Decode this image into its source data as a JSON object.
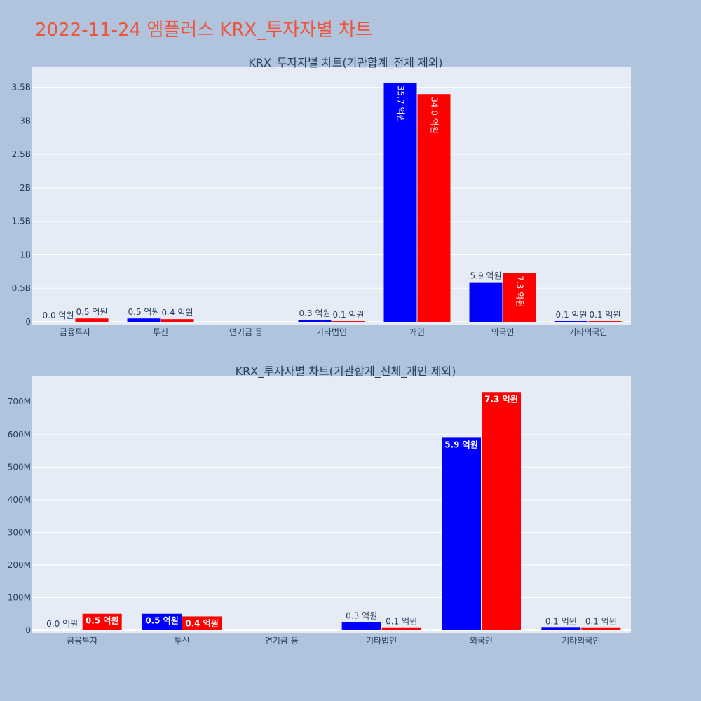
{
  "page": {
    "title": "2022-11-24 엠플러스 KRX_투자자별 차트"
  },
  "chart_data": [
    {
      "type": "bar",
      "title": "KRX_투자자별 차트(기관합계_전체 제외)",
      "categories": [
        "금융투자",
        "투신",
        "연기금 등",
        "기타법인",
        "개인",
        "외국인",
        "기타외국인"
      ],
      "series": [
        {
          "color": "#0000ff",
          "values": [
            0,
            50000000,
            0,
            30000000,
            3570000000,
            590000000,
            10000000
          ],
          "labels": [
            "0.0 억원",
            "0.5 억원",
            "",
            "0.3 억원",
            "35.7 억원",
            "5.9 억원",
            "0.1 억원"
          ]
        },
        {
          "color": "#ff0000",
          "values": [
            50000000,
            40000000,
            0,
            10000000,
            3400000000,
            730000000,
            10000000
          ],
          "labels": [
            "0.5 억원",
            "0.4 억원",
            "",
            "0.1 억원",
            "34.0 억원",
            "7.3 억원",
            "0.1 억원"
          ]
        }
      ],
      "ylim": [
        0,
        3800000000
      ],
      "yticks": [
        0,
        500000000,
        1000000000,
        1500000000,
        2000000000,
        2500000000,
        3000000000,
        3500000000
      ],
      "ytick_labels": [
        "0",
        "0.5B",
        "1B",
        "1.5B",
        "2B",
        "2.5B",
        "3B",
        "3.5B"
      ],
      "grid": true
    },
    {
      "type": "bar",
      "title": "KRX_투자자별 차트(기관합계_전체_개인 제외)",
      "categories": [
        "금융투자",
        "투신",
        "연기금 등",
        "기타법인",
        "외국인",
        "기타외국인"
      ],
      "series": [
        {
          "color": "#0000ff",
          "values": [
            0,
            50000000,
            0,
            25000000,
            590000000,
            8000000
          ],
          "labels": [
            "0.0 억원",
            "0.5 억원",
            "",
            "0.3 억원",
            "5.9 억원",
            "0.1 억원"
          ]
        },
        {
          "color": "#ff0000",
          "values": [
            50000000,
            42000000,
            0,
            7000000,
            730000000,
            7000000
          ],
          "labels": [
            "0.5 억원",
            "0.4 억원",
            "",
            "0.1 억원",
            "7.3 억원",
            "0.1 억원"
          ]
        }
      ],
      "ylim": [
        0,
        780000000
      ],
      "yticks": [
        0,
        100000000,
        200000000,
        300000000,
        400000000,
        500000000,
        600000000,
        700000000
      ],
      "ytick_labels": [
        "0",
        "100M",
        "200M",
        "300M",
        "400M",
        "500M",
        "600M",
        "700M"
      ],
      "grid": true
    }
  ]
}
